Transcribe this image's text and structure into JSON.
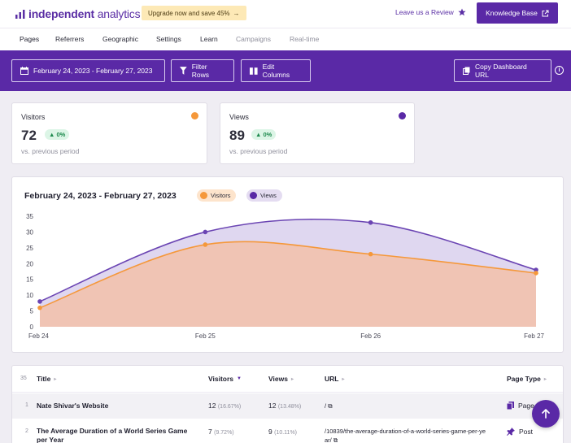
{
  "brand": {
    "name_bold": "independent",
    "name_rest": " analytics",
    "color": "#5b2fa5"
  },
  "header": {
    "upgrade_text": "Upgrade now and save 45%",
    "review_text": "Leave us a Review",
    "knowledge_base_label": "Knowledge Base"
  },
  "tabs": [
    {
      "label": "Pages",
      "active": true
    },
    {
      "label": "Referrers"
    },
    {
      "label": "Geographic"
    },
    {
      "label": "Settings"
    },
    {
      "label": "Learn"
    },
    {
      "label": "Campaigns",
      "muted": true
    },
    {
      "label": "Real-time",
      "muted": true
    }
  ],
  "toolbar": {
    "date_range_label": "February 24, 2023 - February 27, 2023",
    "filter_label": "Filter Rows",
    "edit_columns_label": "Edit Columns",
    "copy_url_label": "Copy Dashboard URL"
  },
  "stats": {
    "visitors": {
      "title": "Visitors",
      "value": "72",
      "change": "0%",
      "sub": "vs. previous period",
      "color": "#f5983a"
    },
    "views": {
      "title": "Views",
      "value": "89",
      "change": "0%",
      "sub": "vs. previous period",
      "color": "#5a29a6"
    }
  },
  "chart_data": {
    "type": "area",
    "title": "February 24, 2023 - February 27, 2023",
    "categories": [
      "Feb 24",
      "Feb 25",
      "Feb 26",
      "Feb 27"
    ],
    "series": [
      {
        "name": "Views",
        "values": [
          8,
          30,
          33,
          18
        ],
        "color": "#6b45b3"
      },
      {
        "name": "Visitors",
        "values": [
          6,
          26,
          23,
          17
        ],
        "color": "#f5983a"
      }
    ],
    "ylim": [
      0,
      35
    ],
    "yticks": [
      0,
      5,
      10,
      15,
      20,
      25,
      30,
      35
    ],
    "grid": false,
    "legend": "top-left"
  },
  "table": {
    "count": "35",
    "headers": {
      "title": "Title",
      "visitors": "Visitors",
      "views": "Views",
      "url": "URL",
      "page_type": "Page Type"
    },
    "rows": [
      {
        "num": "1",
        "title": "Nate Shivar's Website",
        "visitors": "12",
        "visitors_pct": "(16.67%)",
        "views": "12",
        "views_pct": "(13.48%)",
        "url": "/",
        "page_type": "Page"
      },
      {
        "num": "2",
        "title": "The Average Duration of a World Series Game per Year",
        "visitors": "7",
        "visitors_pct": "(9.72%)",
        "views": "9",
        "views_pct": "(10.11%)",
        "url": "/10839/the-average-duration-of-a-world-series-game-per-year/",
        "page_type": "Post"
      }
    ]
  }
}
